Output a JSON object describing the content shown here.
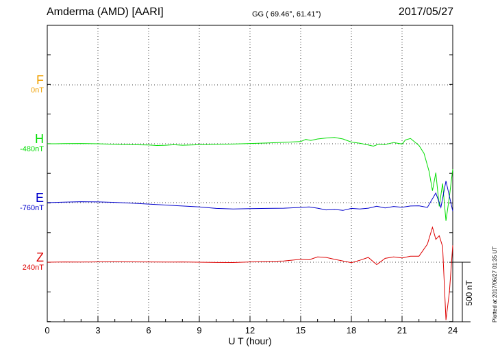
{
  "header": {
    "station": "Amderma (AMD)  [AARI]",
    "coords": "GG ( 69.46°,  61.41°)",
    "date": "2017/05/27"
  },
  "components": [
    {
      "name": "F",
      "offset": "0nT",
      "color": "#f0a000"
    },
    {
      "name": "H",
      "offset": "-480nT",
      "color": "#00dd00"
    },
    {
      "name": "E",
      "offset": "-760nT",
      "color": "#0000cc"
    },
    {
      "name": "Z",
      "offset": "240nT",
      "color": "#dd0000"
    }
  ],
  "scale_label": "500 nT",
  "footer": "Plotted at 2017/06/27 01:35 UT",
  "chart_data": {
    "type": "line",
    "xlabel": "U T (hour)",
    "xlim": [
      0,
      24
    ],
    "xticks": [
      0,
      3,
      6,
      9,
      12,
      15,
      18,
      21,
      24
    ],
    "series": [
      {
        "name": "H",
        "color": "#00dd00",
        "x": [
          0,
          0.5,
          1,
          2,
          3,
          4,
          5,
          6,
          6.5,
          7,
          7.5,
          8,
          9,
          10,
          11,
          12,
          13,
          14,
          15,
          15.3,
          15.6,
          16,
          16.5,
          17,
          17.5,
          18,
          18.5,
          19,
          19.3,
          19.6,
          20,
          20.5,
          21,
          21.2,
          21.5,
          22,
          22.3,
          22.6,
          22.8,
          23,
          23.2,
          23.4,
          23.6,
          23.8,
          24
        ],
        "y": [
          0,
          0,
          1,
          2,
          0,
          -4,
          -8,
          -10,
          -14,
          -12,
          -8,
          -12,
          -8,
          -4,
          -2,
          2,
          6,
          12,
          18,
          36,
          28,
          40,
          48,
          52,
          40,
          14,
          4,
          -10,
          -20,
          -4,
          -6,
          10,
          -2,
          32,
          44,
          -14,
          -80,
          -230,
          -390,
          -240,
          -520,
          -330,
          -640,
          -440,
          -210
        ]
      },
      {
        "name": "E",
        "color": "#0000cc",
        "x": [
          0,
          1,
          2,
          3,
          4,
          5,
          6,
          7,
          8,
          9,
          10,
          11,
          12,
          13,
          14,
          15,
          15.5,
          16,
          16.5,
          17,
          17.5,
          18,
          18.5,
          19,
          19.5,
          20,
          20.5,
          21,
          21.5,
          22,
          22.5,
          23,
          23.3,
          23.6,
          24
        ],
        "y": [
          0,
          4,
          8,
          6,
          2,
          -4,
          -12,
          -20,
          -28,
          -36,
          -48,
          -52,
          -50,
          -48,
          -46,
          -40,
          -36,
          -46,
          -60,
          -56,
          -64,
          -48,
          -52,
          -46,
          -30,
          -44,
          -32,
          -38,
          -28,
          -26,
          -40,
          80,
          -40,
          180,
          -70
        ]
      },
      {
        "name": "Z",
        "color": "#dd0000",
        "x": [
          0,
          1,
          2,
          3,
          4,
          5,
          6,
          7,
          8,
          9,
          10,
          11,
          12,
          13,
          14,
          15,
          15.5,
          16,
          16.5,
          17,
          17.5,
          18,
          18.5,
          19,
          19.5,
          20,
          20.5,
          21,
          21.5,
          22,
          22.5,
          22.8,
          23,
          23.2,
          23.4,
          23.6,
          23.8,
          24
        ],
        "y": [
          0,
          2,
          1,
          3,
          4,
          3,
          2,
          1,
          2,
          0,
          -2,
          -3,
          2,
          6,
          10,
          24,
          20,
          44,
          40,
          24,
          10,
          -4,
          16,
          40,
          -20,
          32,
          44,
          36,
          50,
          50,
          150,
          290,
          190,
          220,
          130,
          -480,
          -250,
          140
        ]
      }
    ]
  }
}
